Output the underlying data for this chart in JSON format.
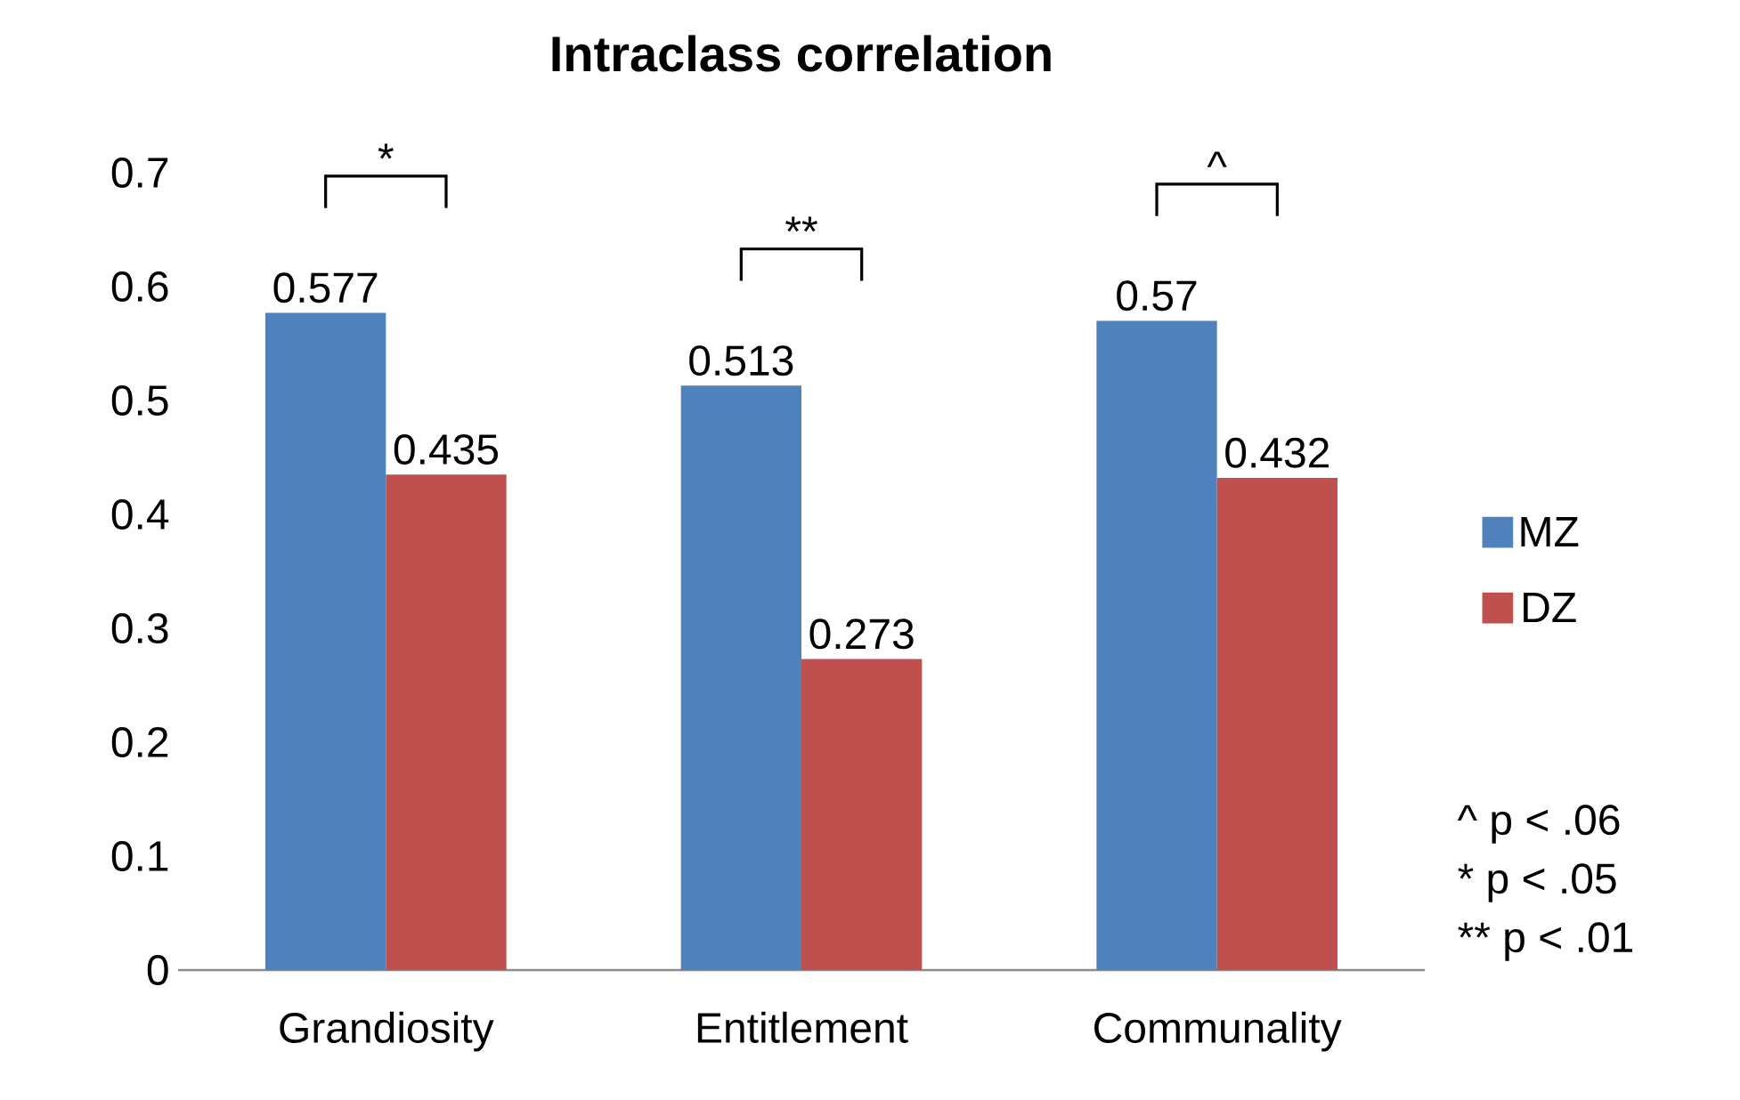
{
  "chart_data": {
    "type": "bar",
    "title": "Intraclass correlation",
    "categories": [
      "Grandiosity",
      "Entitlement",
      "Communality"
    ],
    "series": [
      {
        "name": "MZ",
        "color": "#4f81bd",
        "values": [
          0.577,
          0.513,
          0.57
        ]
      },
      {
        "name": "DZ",
        "color": "#c0504d",
        "values": [
          0.435,
          0.273,
          0.432
        ]
      }
    ],
    "ylim": [
      0,
      0.7
    ],
    "yticks": [
      0,
      0.1,
      0.2,
      0.3,
      0.4,
      0.5,
      0.6,
      0.7
    ],
    "data_labels": true,
    "legend": "right",
    "annotations": [
      "*",
      "**",
      "^",
      "^ p < .06",
      "* p < .05",
      "** p < .01"
    ]
  }
}
